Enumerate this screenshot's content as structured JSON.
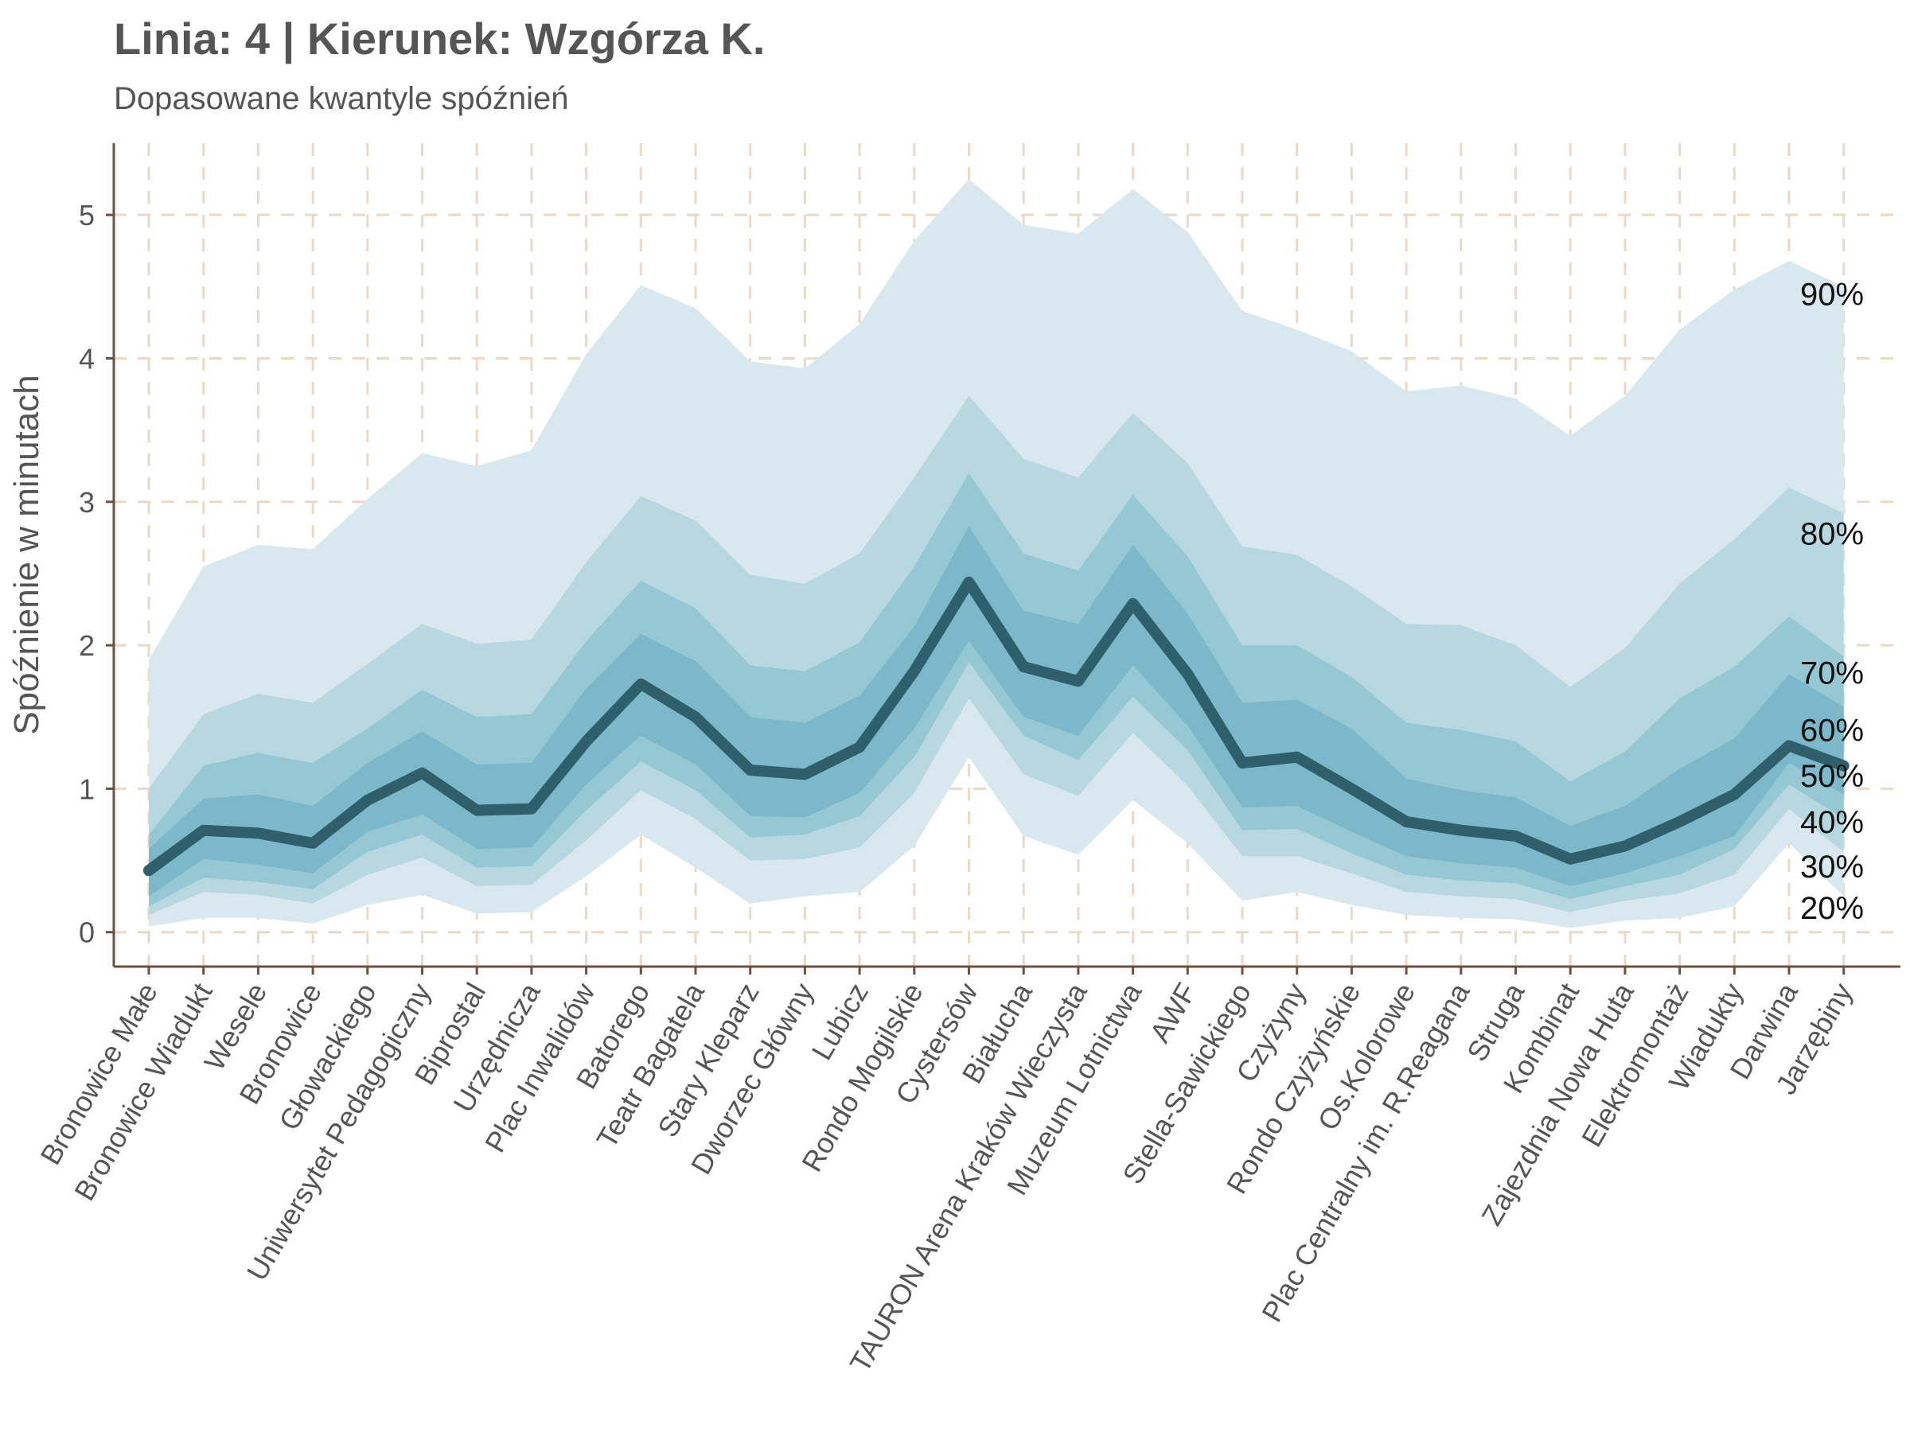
{
  "title": "Linia: 4 | Kierunek: Wzgórza K.",
  "subtitle": "Dopasowane kwantyle spóźnień",
  "chart_data": {
    "type": "area",
    "title": "Linia: 4 | Kierunek: Wzgórza K.",
    "subtitle": "Dopasowane kwantyle spóźnień",
    "xlabel": "",
    "ylabel": "Spóźnienie w minutach",
    "ylim": [
      -0.24,
      5.5
    ],
    "yticks": [
      0,
      1,
      2,
      3,
      4,
      5
    ],
    "grid": true,
    "colors": {
      "band_90": "#d8e8ee",
      "band_80": "#b7d8e0",
      "band_70": "#96c8d4",
      "band_60": "#7cb8c9",
      "median_line": "#2e5f6b",
      "grid": "#ead8c8",
      "axis": "#6b5040"
    },
    "categories": [
      "Bronowice Małe",
      "Bronowice Wiadukt",
      "Wesele",
      "Bronowice",
      "Głowackiego",
      "Uniwersytet Pedagogiczny",
      "Biprostal",
      "Urzędnicza",
      "Plac Inwalidów",
      "Batorego",
      "Teatr Bagatela",
      "Stary Kleparz",
      "Dworzec Główny",
      "Lubicz",
      "Rondo Mogilskie",
      "Cystersów",
      "Białucha",
      "TAURON Arena Kraków Wieczysta",
      "Muzeum Lotnictwa",
      "AWF",
      "Stella-Sawickiego",
      "Czyżyny",
      "Rondo Czyżyńskie",
      "Os.Kolorowe",
      "Plac Centralny im. R.Reagana",
      "Struga",
      "Kombinat",
      "Zajezdnia Nowa Huta",
      "Elektromontaż",
      "Wiadukty",
      "Darwina",
      "Jarzębiny"
    ],
    "bands": [
      {
        "label": "90%",
        "lower": [
          0.04,
          0.1,
          0.1,
          0.06,
          0.19,
          0.26,
          0.13,
          0.14,
          0.39,
          0.68,
          0.45,
          0.2,
          0.25,
          0.28,
          0.6,
          1.22,
          0.67,
          0.54,
          0.92,
          0.62,
          0.22,
          0.28,
          0.19,
          0.12,
          0.1,
          0.09,
          0.03,
          0.08,
          0.1,
          0.18,
          0.62,
          0.25
        ],
        "upper": [
          1.9,
          2.55,
          2.7,
          2.67,
          3.02,
          3.34,
          3.25,
          3.36,
          4.03,
          4.51,
          4.35,
          3.98,
          3.93,
          4.24,
          4.82,
          5.25,
          4.93,
          4.87,
          5.18,
          4.88,
          4.33,
          4.2,
          4.05,
          3.77,
          3.81,
          3.72,
          3.46,
          3.74,
          4.2,
          4.48,
          4.68,
          4.5
        ]
      },
      {
        "label": "80%",
        "lower": [
          0.12,
          0.28,
          0.26,
          0.2,
          0.4,
          0.52,
          0.32,
          0.33,
          0.64,
          0.99,
          0.79,
          0.5,
          0.51,
          0.59,
          0.97,
          1.63,
          1.1,
          0.95,
          1.39,
          1.02,
          0.53,
          0.53,
          0.41,
          0.28,
          0.25,
          0.23,
          0.14,
          0.22,
          0.27,
          0.4,
          0.86,
          0.56
        ],
        "upper": [
          1.0,
          1.52,
          1.66,
          1.6,
          1.87,
          2.15,
          2.01,
          2.04,
          2.58,
          3.04,
          2.87,
          2.49,
          2.43,
          2.64,
          3.17,
          3.74,
          3.3,
          3.17,
          3.62,
          3.27,
          2.69,
          2.63,
          2.41,
          2.15,
          2.14,
          2.0,
          1.71,
          1.98,
          2.43,
          2.74,
          3.1,
          2.92
        ]
      },
      {
        "label": "70%",
        "lower": [
          0.18,
          0.38,
          0.35,
          0.3,
          0.56,
          0.68,
          0.45,
          0.46,
          0.85,
          1.19,
          0.99,
          0.66,
          0.68,
          0.81,
          1.22,
          1.88,
          1.37,
          1.2,
          1.64,
          1.27,
          0.71,
          0.72,
          0.55,
          0.4,
          0.36,
          0.34,
          0.23,
          0.32,
          0.4,
          0.58,
          1.03,
          0.79
        ],
        "upper": [
          0.68,
          1.16,
          1.25,
          1.18,
          1.42,
          1.69,
          1.5,
          1.52,
          2.03,
          2.45,
          2.26,
          1.86,
          1.82,
          2.02,
          2.55,
          3.2,
          2.64,
          2.52,
          3.05,
          2.62,
          2.0,
          2.0,
          1.78,
          1.46,
          1.41,
          1.33,
          1.05,
          1.26,
          1.63,
          1.85,
          2.2,
          1.92
        ]
      },
      {
        "label": "60%",
        "lower": [
          0.25,
          0.51,
          0.47,
          0.41,
          0.7,
          0.82,
          0.58,
          0.59,
          1.03,
          1.37,
          1.17,
          0.81,
          0.8,
          0.97,
          1.42,
          2.03,
          1.5,
          1.37,
          1.86,
          1.44,
          0.87,
          0.88,
          0.7,
          0.53,
          0.48,
          0.45,
          0.32,
          0.41,
          0.53,
          0.67,
          1.18,
          0.96
        ],
        "upper": [
          0.58,
          0.93,
          0.96,
          0.88,
          1.18,
          1.4,
          1.17,
          1.18,
          1.7,
          2.08,
          1.89,
          1.5,
          1.46,
          1.65,
          2.13,
          2.83,
          2.24,
          2.15,
          2.7,
          2.22,
          1.6,
          1.62,
          1.42,
          1.07,
          0.99,
          0.94,
          0.74,
          0.88,
          1.14,
          1.35,
          1.8,
          1.57
        ]
      }
    ],
    "series": [
      {
        "name": "50%",
        "values": [
          0.43,
          0.71,
          0.69,
          0.62,
          0.92,
          1.11,
          0.85,
          0.86,
          1.33,
          1.73,
          1.5,
          1.13,
          1.1,
          1.29,
          1.82,
          2.44,
          1.85,
          1.75,
          2.29,
          1.8,
          1.18,
          1.22,
          1.0,
          0.77,
          0.71,
          0.67,
          0.51,
          0.6,
          0.77,
          0.96,
          1.3,
          1.16
        ]
      }
    ],
    "band_labels": [
      {
        "text": "90%",
        "y": 4.45
      },
      {
        "text": "80%",
        "y": 2.78
      },
      {
        "text": "70%",
        "y": 1.81
      },
      {
        "text": "60%",
        "y": 1.41
      },
      {
        "text": "50%",
        "y": 1.09
      },
      {
        "text": "40%",
        "y": 0.77
      },
      {
        "text": "30%",
        "y": 0.46
      },
      {
        "text": "20%",
        "y": 0.17
      }
    ]
  }
}
